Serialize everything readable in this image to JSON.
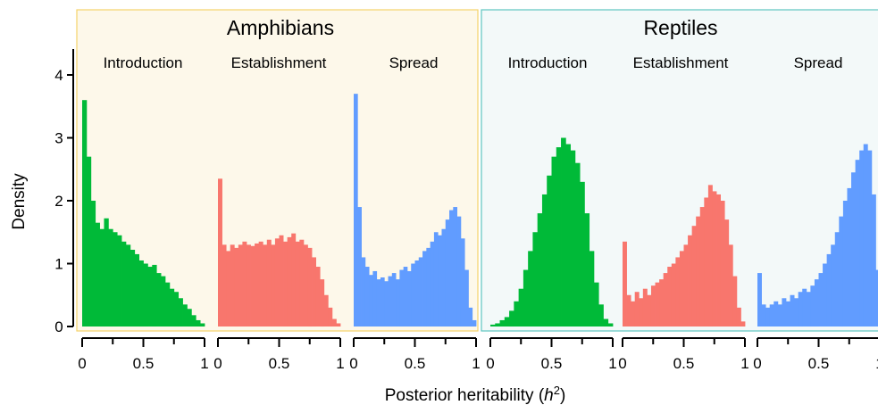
{
  "chart_data": {
    "type": "histogram",
    "xlabel_prefix": "Posterior heritability (",
    "xlabel_symbol": "h",
    "xlabel_sup": "2",
    "xlabel_suffix": ")",
    "ylabel": "Density",
    "ylim": [
      0,
      4
    ],
    "yticks": [
      "0",
      "1",
      "2",
      "3",
      "4"
    ],
    "xlim": [
      0,
      1
    ],
    "xtick_labels": [
      "0",
      "0.5",
      "1"
    ],
    "colors": {
      "Introduction": "#00BA38",
      "Establishment": "#F8766D",
      "Spread": "#619CFF",
      "Amphibians_bg": "#FDF8EA",
      "Amphibians_border": "#F5D36A",
      "Reptiles_bg": "#F3F9F9",
      "Reptiles_border": "#5FC6C0"
    },
    "groups": [
      {
        "name": "Amphibians",
        "panels": [
          {
            "title": "Introduction",
            "x": [
              0.02,
              0.05,
              0.08,
              0.11,
              0.14,
              0.17,
              0.2,
              0.23,
              0.26,
              0.29,
              0.32,
              0.35,
              0.38,
              0.41,
              0.44,
              0.47,
              0.5,
              0.53,
              0.56,
              0.59,
              0.62,
              0.65,
              0.68,
              0.71,
              0.74,
              0.77,
              0.8,
              0.83
            ],
            "density": [
              3.6,
              2.7,
              2.0,
              1.65,
              1.55,
              1.72,
              1.55,
              1.5,
              1.45,
              1.35,
              1.3,
              1.22,
              1.15,
              1.05,
              1.0,
              0.95,
              0.98,
              0.85,
              0.8,
              0.7,
              0.6,
              0.55,
              0.45,
              0.35,
              0.28,
              0.18,
              0.1,
              0.05
            ]
          },
          {
            "title": "Establishment",
            "x": [
              0.02,
              0.05,
              0.08,
              0.11,
              0.14,
              0.17,
              0.2,
              0.23,
              0.26,
              0.29,
              0.32,
              0.35,
              0.38,
              0.41,
              0.44,
              0.47,
              0.5,
              0.53,
              0.56,
              0.59,
              0.62,
              0.65,
              0.68,
              0.71,
              0.74,
              0.77,
              0.8,
              0.83,
              0.86,
              0.89
            ],
            "density": [
              2.35,
              1.3,
              1.2,
              1.3,
              1.25,
              1.3,
              1.35,
              1.3,
              1.28,
              1.32,
              1.35,
              1.3,
              1.38,
              1.3,
              1.4,
              1.45,
              1.35,
              1.42,
              1.48,
              1.35,
              1.38,
              1.3,
              1.25,
              1.1,
              0.95,
              0.75,
              0.5,
              0.3,
              0.12,
              0.05
            ]
          },
          {
            "title": "Spread",
            "x": [
              0.02,
              0.05,
              0.08,
              0.11,
              0.14,
              0.17,
              0.2,
              0.23,
              0.26,
              0.29,
              0.32,
              0.35,
              0.38,
              0.41,
              0.44,
              0.47,
              0.5,
              0.53,
              0.56,
              0.59,
              0.62,
              0.65,
              0.68,
              0.71,
              0.74,
              0.77,
              0.8,
              0.83,
              0.86,
              0.89,
              0.92,
              0.95
            ],
            "density": [
              3.7,
              1.9,
              1.1,
              0.95,
              0.82,
              0.88,
              0.75,
              0.78,
              0.72,
              0.8,
              0.85,
              0.75,
              0.9,
              0.95,
              0.88,
              1.0,
              1.05,
              1.1,
              1.2,
              1.25,
              1.35,
              1.5,
              1.45,
              1.55,
              1.7,
              1.85,
              1.9,
              1.75,
              1.4,
              0.9,
              0.3,
              0.1
            ]
          }
        ]
      },
      {
        "name": "Reptiles",
        "panels": [
          {
            "title": "Introduction",
            "x": [
              0.05,
              0.1,
              0.15,
              0.2,
              0.25,
              0.28,
              0.31,
              0.34,
              0.37,
              0.4,
              0.43,
              0.46,
              0.49,
              0.52,
              0.55,
              0.58,
              0.61,
              0.64,
              0.67,
              0.7,
              0.73,
              0.76,
              0.79,
              0.82,
              0.85,
              0.88
            ],
            "density": [
              0.03,
              0.05,
              0.1,
              0.15,
              0.25,
              0.4,
              0.6,
              0.9,
              1.2,
              1.5,
              1.8,
              2.1,
              2.4,
              2.7,
              2.85,
              3.0,
              2.9,
              2.8,
              2.6,
              2.3,
              1.8,
              1.2,
              0.7,
              0.35,
              0.12,
              0.05
            ]
          },
          {
            "title": "Establishment",
            "x": [
              0.02,
              0.05,
              0.08,
              0.11,
              0.14,
              0.17,
              0.2,
              0.23,
              0.26,
              0.29,
              0.32,
              0.35,
              0.38,
              0.41,
              0.44,
              0.47,
              0.5,
              0.53,
              0.56,
              0.59,
              0.62,
              0.65,
              0.68,
              0.71,
              0.74,
              0.77,
              0.8,
              0.83,
              0.86,
              0.89
            ],
            "density": [
              1.35,
              0.5,
              0.4,
              0.55,
              0.45,
              0.6,
              0.5,
              0.65,
              0.7,
              0.75,
              0.85,
              0.95,
              1.0,
              1.1,
              1.2,
              1.3,
              1.45,
              1.6,
              1.75,
              1.9,
              2.05,
              2.25,
              2.15,
              2.1,
              2.0,
              1.7,
              1.3,
              0.8,
              0.3,
              0.08
            ]
          },
          {
            "title": "Spread",
            "x": [
              0.02,
              0.05,
              0.08,
              0.11,
              0.14,
              0.17,
              0.2,
              0.23,
              0.26,
              0.29,
              0.32,
              0.35,
              0.38,
              0.41,
              0.44,
              0.47,
              0.5,
              0.53,
              0.56,
              0.59,
              0.62,
              0.65,
              0.68,
              0.71,
              0.74,
              0.77,
              0.8,
              0.83,
              0.86,
              0.89
            ],
            "density": [
              0.85,
              0.35,
              0.3,
              0.35,
              0.4,
              0.35,
              0.45,
              0.4,
              0.5,
              0.45,
              0.55,
              0.6,
              0.55,
              0.65,
              0.75,
              0.85,
              1.0,
              1.15,
              1.3,
              1.5,
              1.75,
              2.0,
              2.2,
              2.45,
              2.65,
              2.8,
              2.9,
              2.8,
              2.1,
              0.9
            ]
          }
        ]
      }
    ]
  }
}
